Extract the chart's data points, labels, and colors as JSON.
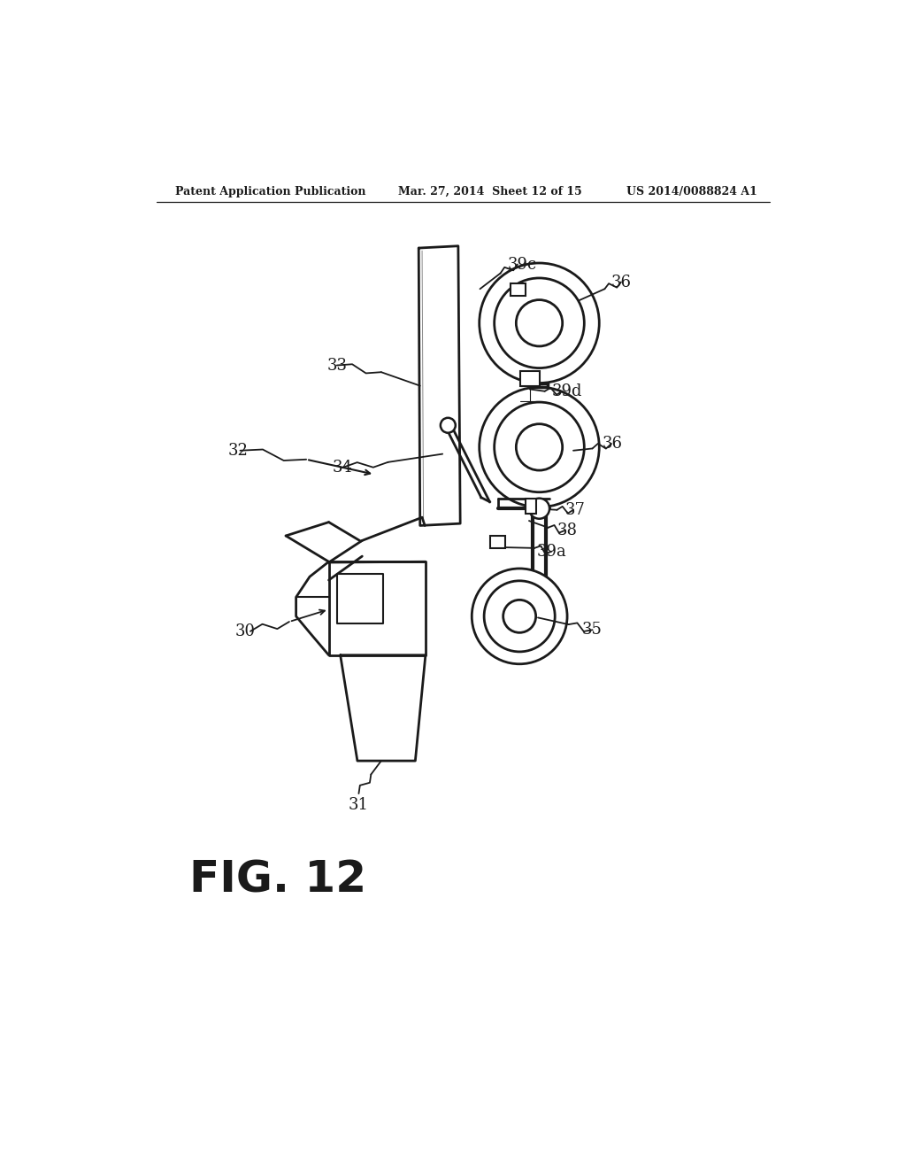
{
  "bg_color": "#ffffff",
  "line_color": "#1a1a1a",
  "header_left": "Patent Application Publication",
  "header_mid": "Mar. 27, 2014  Sheet 12 of 15",
  "header_right": "US 2014/0088824 A1",
  "fig_label": "FIG. 12",
  "title_fontsize": 9,
  "label_fontsize": 13,
  "fig_label_fontsize": 36
}
